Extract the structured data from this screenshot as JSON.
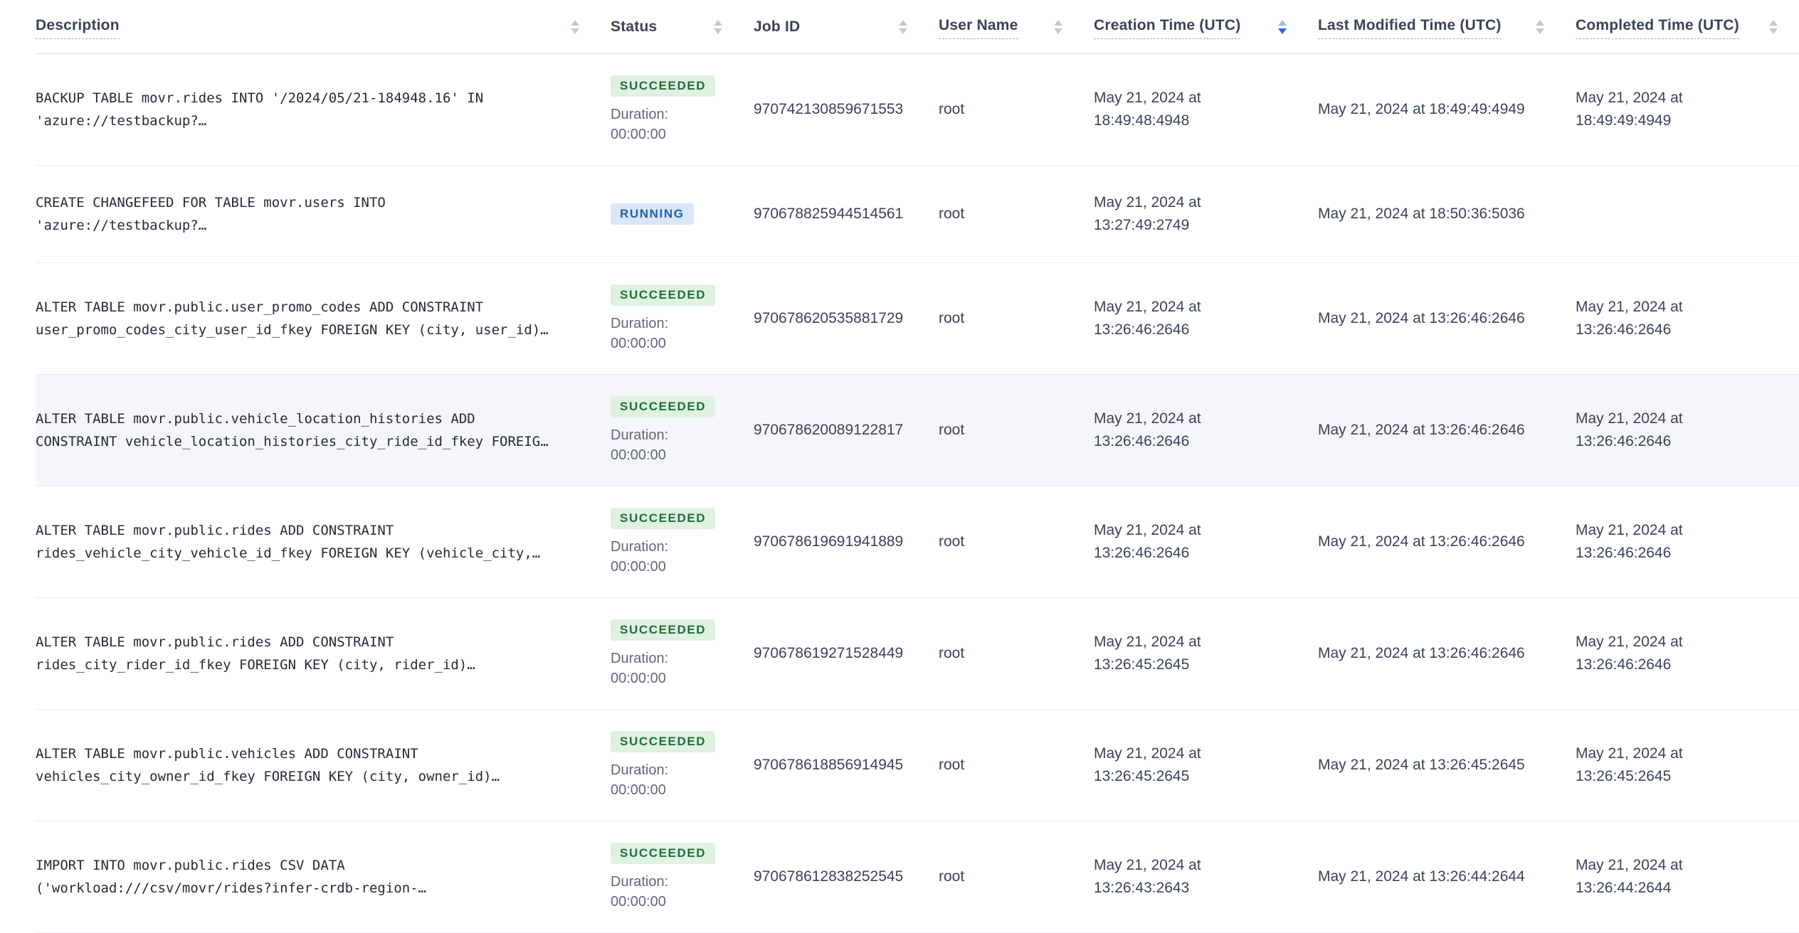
{
  "table": {
    "duration_label": "Duration:",
    "sorted_column": "created",
    "sort_direction": "desc",
    "status_styles": {
      "SUCCEEDED": {
        "bg": "#DFF1E1",
        "text": "#226E37"
      },
      "RUNNING": {
        "bg": "#D9E7F9",
        "text": "#1F5FAF"
      }
    },
    "colors": {
      "active_sort_arrow": "#2563EB",
      "inactive_sort_arrow": "#C3C9D6",
      "row_highlight": "#F4F6FA",
      "separator": "#E7EBF2",
      "header_text": "#394455"
    },
    "columns": [
      {
        "id": "description",
        "label": "Description",
        "tooltip_underline": true,
        "sort": "none"
      },
      {
        "id": "status",
        "label": "Status",
        "tooltip_underline": false,
        "sort": "none"
      },
      {
        "id": "job_id",
        "label": "Job ID",
        "tooltip_underline": false,
        "sort": "none"
      },
      {
        "id": "user",
        "label": "User Name",
        "tooltip_underline": true,
        "sort": "none"
      },
      {
        "id": "created",
        "label": "Creation Time (UTC)",
        "tooltip_underline": true,
        "sort": "desc"
      },
      {
        "id": "modified",
        "label": "Last Modified Time (UTC)",
        "tooltip_underline": true,
        "sort": "none"
      },
      {
        "id": "completed",
        "label": "Completed Time (UTC)",
        "tooltip_underline": true,
        "sort": "none"
      }
    ],
    "rows": [
      {
        "description": "BACKUP TABLE movr.rides INTO '/2024/05/21-184948.16' IN\n'azure://testbackup?…",
        "status": "SUCCEEDED",
        "duration": "00:00:00",
        "job_id": "970742130859671553",
        "user": "root",
        "created": "May 21, 2024 at\n18:49:48:4948",
        "modified": "May 21, 2024 at 18:49:49:4949",
        "completed": "May 21, 2024 at\n18:49:49:4949",
        "highlighted": false
      },
      {
        "description": "CREATE CHANGEFEED FOR TABLE movr.users INTO\n'azure://testbackup?…",
        "status": "RUNNING",
        "duration": null,
        "job_id": "970678825944514561",
        "user": "root",
        "created": "May 21, 2024 at\n13:27:49:2749",
        "modified": "May 21, 2024 at 18:50:36:5036",
        "completed": "",
        "highlighted": false
      },
      {
        "description": "ALTER TABLE movr.public.user_promo_codes ADD CONSTRAINT\nuser_promo_codes_city_user_id_fkey FOREIGN KEY (city, user_id)…",
        "status": "SUCCEEDED",
        "duration": "00:00:00",
        "job_id": "970678620535881729",
        "user": "root",
        "created": "May 21, 2024 at\n13:26:46:2646",
        "modified": "May 21, 2024 at 13:26:46:2646",
        "completed": "May 21, 2024 at\n13:26:46:2646",
        "highlighted": false
      },
      {
        "description": "ALTER TABLE movr.public.vehicle_location_histories ADD\nCONSTRAINT vehicle_location_histories_city_ride_id_fkey FOREIG…",
        "status": "SUCCEEDED",
        "duration": "00:00:00",
        "job_id": "970678620089122817",
        "user": "root",
        "created": "May 21, 2024 at\n13:26:46:2646",
        "modified": "May 21, 2024 at 13:26:46:2646",
        "completed": "May 21, 2024 at\n13:26:46:2646",
        "highlighted": true
      },
      {
        "description": "ALTER TABLE movr.public.rides ADD CONSTRAINT\nrides_vehicle_city_vehicle_id_fkey FOREIGN KEY (vehicle_city,…",
        "status": "SUCCEEDED",
        "duration": "00:00:00",
        "job_id": "970678619691941889",
        "user": "root",
        "created": "May 21, 2024 at\n13:26:46:2646",
        "modified": "May 21, 2024 at 13:26:46:2646",
        "completed": "May 21, 2024 at\n13:26:46:2646",
        "highlighted": false
      },
      {
        "description": "ALTER TABLE movr.public.rides ADD CONSTRAINT\nrides_city_rider_id_fkey FOREIGN KEY (city, rider_id)…",
        "status": "SUCCEEDED",
        "duration": "00:00:00",
        "job_id": "970678619271528449",
        "user": "root",
        "created": "May 21, 2024 at\n13:26:45:2645",
        "modified": "May 21, 2024 at 13:26:46:2646",
        "completed": "May 21, 2024 at\n13:26:46:2646",
        "highlighted": false
      },
      {
        "description": "ALTER TABLE movr.public.vehicles ADD CONSTRAINT\nvehicles_city_owner_id_fkey FOREIGN KEY (city, owner_id)…",
        "status": "SUCCEEDED",
        "duration": "00:00:00",
        "job_id": "970678618856914945",
        "user": "root",
        "created": "May 21, 2024 at\n13:26:45:2645",
        "modified": "May 21, 2024 at 13:26:45:2645",
        "completed": "May 21, 2024 at\n13:26:45:2645",
        "highlighted": false
      },
      {
        "description": "IMPORT INTO movr.public.rides CSV DATA\n('workload:///csv/movr/rides?infer-crdb-region-…",
        "status": "SUCCEEDED",
        "duration": "00:00:00",
        "job_id": "970678612838252545",
        "user": "root",
        "created": "May 21, 2024 at\n13:26:43:2643",
        "modified": "May 21, 2024 at 13:26:44:2644",
        "completed": "May 21, 2024 at\n13:26:44:2644",
        "highlighted": false
      }
    ]
  }
}
